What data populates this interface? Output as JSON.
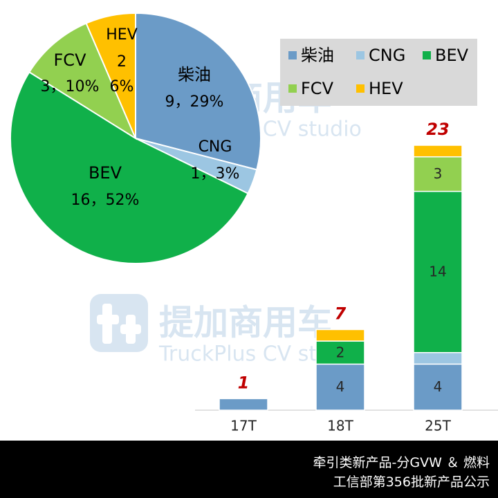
{
  "watermark": {
    "brand_cn": "提加商用车",
    "brand_en": "TruckPlus CV studio"
  },
  "colors": {
    "柴油": "#6b9bc7",
    "CNG": "#9cc6e2",
    "BEV": "#10b04a",
    "FCV": "#92d050",
    "HEV": "#ffc000",
    "total_label": "#c00000",
    "legend_bg": "#d9d9d9",
    "footer_bg": "#000000"
  },
  "chart_data": [
    {
      "type": "pie",
      "title": "",
      "slices": [
        {
          "name": "柴油",
          "value": 9,
          "percent": "29%",
          "label_line1": "柴油",
          "label_line2": "9，29%"
        },
        {
          "name": "CNG",
          "value": 1,
          "percent": "3%",
          "label_line1": "CNG",
          "label_line2": "1，3%"
        },
        {
          "name": "BEV",
          "value": 16,
          "percent": "52%",
          "label_line1": "BEV",
          "label_line2": "16，52%"
        },
        {
          "name": "FCV",
          "value": 3,
          "percent": "10%",
          "label_line1": "FCV",
          "label_line2": "3，10%"
        },
        {
          "name": "HEV",
          "value": 2,
          "percent": "6%",
          "label_line1": "HEV",
          "label_line2": "2",
          "label_line3": "6%"
        }
      ]
    },
    {
      "type": "bar",
      "stacked": true,
      "title": "",
      "categories": [
        "17T",
        "18T",
        "25T"
      ],
      "series": [
        {
          "name": "柴油",
          "values": [
            1,
            4,
            4
          ]
        },
        {
          "name": "CNG",
          "values": [
            0,
            0,
            1
          ]
        },
        {
          "name": "BEV",
          "values": [
            0,
            2,
            14
          ]
        },
        {
          "name": "FCV",
          "values": [
            0,
            0,
            3
          ]
        },
        {
          "name": "HEV",
          "values": [
            0,
            1,
            1
          ]
        }
      ],
      "totals": [
        1,
        7,
        23
      ],
      "legend": [
        "柴油",
        "CNG",
        "BEV",
        "FCV",
        "HEV"
      ],
      "legend_position": "top-right",
      "grid": false
    }
  ],
  "footer": {
    "line1": "牵引类新产品-分GVW ＆ 燃料",
    "line2": "工信部第356批新产品公示"
  }
}
